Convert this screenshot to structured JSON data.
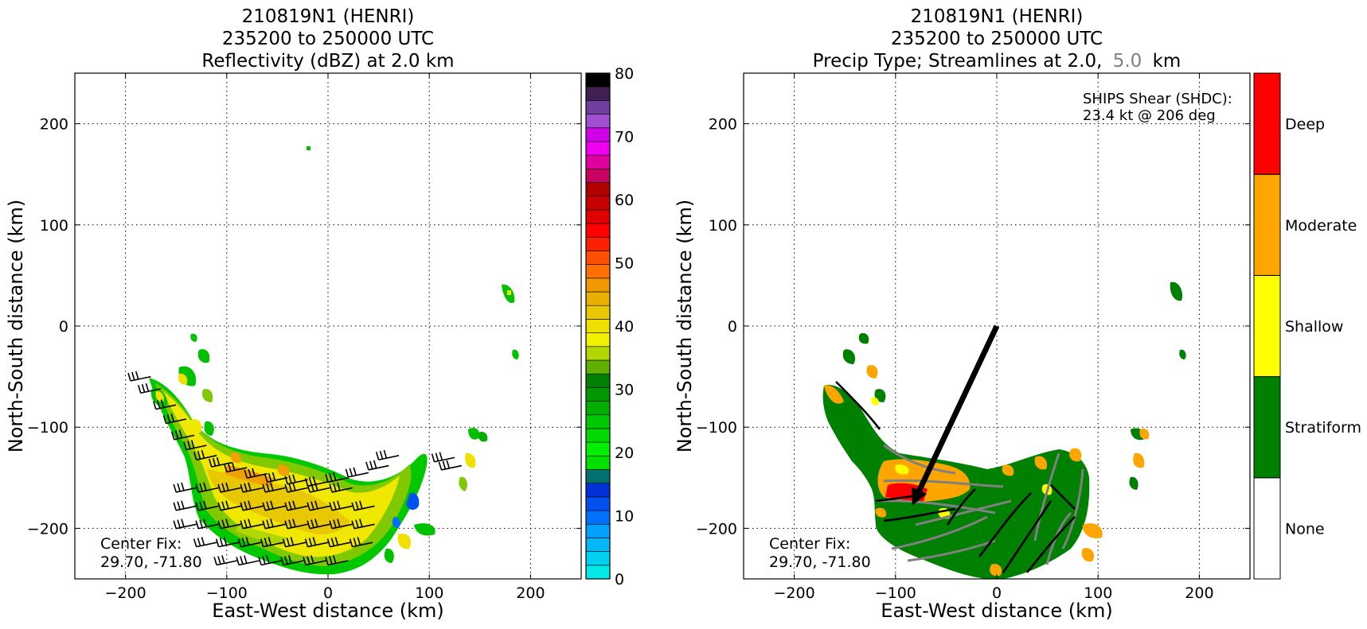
{
  "chart_data": [
    {
      "type": "heatmap",
      "title": [
        "210819N1 (HENRI)",
        "235200 to 250000 UTC",
        "Reflectivity (dBZ) at 2.0 km"
      ],
      "xlabel": "East-West distance (km)",
      "ylabel": "North-South distance (km)",
      "xlim": [
        -250,
        250
      ],
      "ylim": [
        -250,
        250
      ],
      "xticks": [
        -200,
        -100,
        0,
        100,
        200
      ],
      "yticks": [
        -200,
        -100,
        0,
        100,
        200
      ],
      "grid": true,
      "annotation": [
        "Center Fix:",
        "29.70, -71.80"
      ],
      "colorbar": {
        "min": 0,
        "max": 80,
        "ticks": [
          0,
          10,
          20,
          30,
          40,
          50,
          60,
          70,
          80
        ],
        "colors": [
          "#00e8e8",
          "#00d0f0",
          "#00b8f8",
          "#00a0ff",
          "#0070ff",
          "#0050f0",
          "#0030d8",
          "#007070",
          "#00e000",
          "#00f000",
          "#00d800",
          "#00c800",
          "#00b000",
          "#009800",
          "#008000",
          "#60b000",
          "#b0d800",
          "#f0f000",
          "#f0e000",
          "#e8c800",
          "#e8b000",
          "#f09800",
          "#ff7000",
          "#ff5000",
          "#ff2000",
          "#ff0000",
          "#e00000",
          "#c80000",
          "#b00000",
          "#c80060",
          "#e000a0",
          "#f000f0",
          "#d000e8",
          "#a050d0",
          "#7040a0",
          "#402050",
          "#000000"
        ]
      },
      "echo_regions": [
        {
          "x": [
            -180,
            -150,
            -130,
            -110,
            -90,
            -60,
            -30,
            0,
            30,
            55,
            75,
            80,
            70,
            50,
            30,
            10,
            -10,
            -40,
            -70,
            -100,
            -120,
            -130,
            -135,
            -150,
            -165,
            -180
          ],
          "y": [
            -55,
            -65,
            -100,
            -125,
            -135,
            -140,
            -160,
            -165,
            -180,
            -150,
            -125,
            -140,
            -170,
            -200,
            -225,
            -245,
            -245,
            -235,
            -225,
            -205,
            -190,
            -165,
            -130,
            -105,
            -85,
            -55
          ]
        }
      ],
      "wind_barb_rows": [
        {
          "y": -160,
          "x_start": -130,
          "x_end": 40
        },
        {
          "y": -178,
          "x_start": -130,
          "x_end": 55
        },
        {
          "y": -196,
          "x_start": -130,
          "x_end": 60
        },
        {
          "y": -214,
          "x_start": -110,
          "x_end": 50
        },
        {
          "y": -232,
          "x_start": -90,
          "x_end": 40
        }
      ]
    },
    {
      "type": "heatmap",
      "title": [
        "210819N1 (HENRI)",
        "235200 to 250000 UTC",
        "Precip Type; Streamlines at 2.0,",
        "5.0",
        "km"
      ],
      "xlabel": "East-West distance (km)",
      "ylabel": "North-South distance (km)",
      "xlim": [
        -250,
        250
      ],
      "ylim": [
        -250,
        250
      ],
      "xticks": [
        -200,
        -100,
        0,
        100,
        200
      ],
      "yticks": [
        -200,
        -100,
        0,
        100,
        200
      ],
      "grid": true,
      "annotation": [
        "Center Fix:",
        "29.70, -71.80"
      ],
      "shear_text": [
        "SHIPS Shear (SHDC):",
        "23.4 kt @ 206 deg"
      ],
      "shear_arrow": {
        "from": [
          0,
          0
        ],
        "to": [
          -80,
          -170
        ]
      },
      "colorbar": {
        "categories": [
          "None",
          "Stratiform",
          "Shallow",
          "Moderate",
          "Deep"
        ],
        "colors": [
          "#ffffff",
          "#008000",
          "#ffff00",
          "#ffa500",
          "#ff0000"
        ]
      },
      "colors": {
        "streamline_2km": "#000000",
        "streamline_5km": "#808080"
      }
    }
  ]
}
